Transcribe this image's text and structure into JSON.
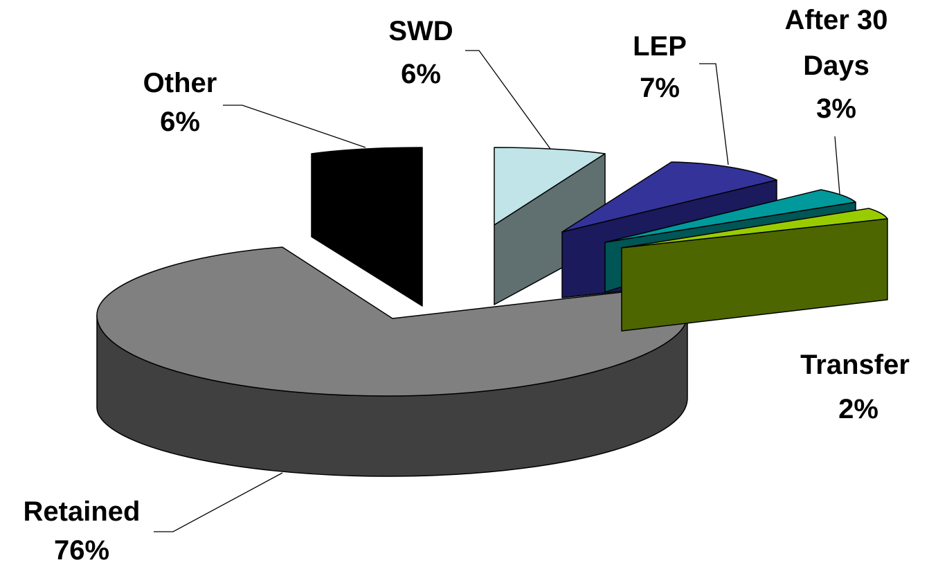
{
  "chart_data": {
    "type": "pie",
    "style": "3d-exploded",
    "title": "",
    "unit": "%",
    "slices": [
      {
        "label": "Retained",
        "value": 76,
        "pct_label": "76%",
        "top_color": "#808080",
        "side_color": "#404040"
      },
      {
        "label": "Other",
        "value": 6,
        "pct_label": "6%",
        "top_color": "#000000",
        "side_color": "#000000"
      },
      {
        "label": "SWD",
        "value": 6,
        "pct_label": "6%",
        "top_color": "#C0E4E8",
        "side_color": "#607070"
      },
      {
        "label": "LEP",
        "value": 7,
        "pct_label": "7%",
        "top_color": "#333399",
        "side_color": "#1A1A5C"
      },
      {
        "label_lines": [
          "After 30",
          "Days"
        ],
        "value": 3,
        "pct_label": "3%",
        "top_color": "#00999C",
        "side_color": "#005555"
      },
      {
        "label": "Transfer",
        "value": 2,
        "pct_label": "2%",
        "top_color": "#99CC00",
        "side_color": "#4D6600"
      }
    ],
    "legend": "none",
    "data_labels": "outside-with-leaders"
  }
}
